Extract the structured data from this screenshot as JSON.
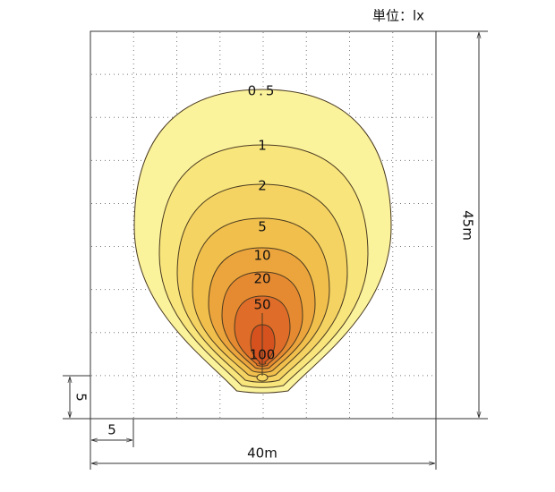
{
  "unit_label": "単位：lx",
  "contours": [
    {
      "label": "0.5"
    },
    {
      "label": "1"
    },
    {
      "label": "2"
    },
    {
      "label": "5"
    },
    {
      "label": "10"
    },
    {
      "label": "20"
    },
    {
      "label": "50"
    },
    {
      "label": "100"
    }
  ],
  "dimensions": {
    "height": "45m",
    "width": "40m",
    "cell_height": "5",
    "cell_width": "5"
  }
}
